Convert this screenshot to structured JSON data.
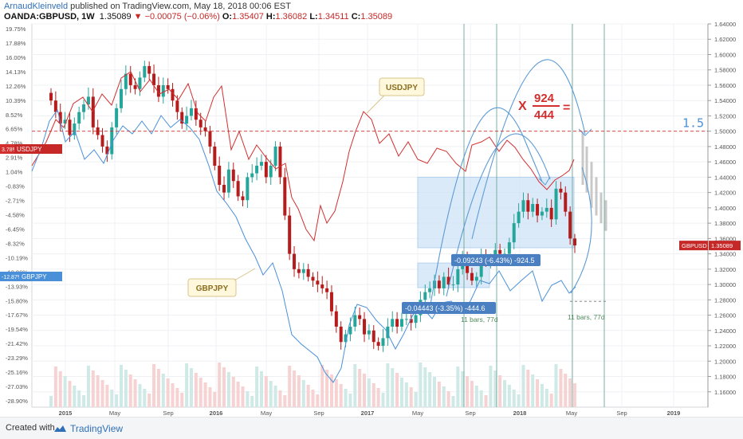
{
  "header": {
    "author": "ArnaudKleinveld",
    "published": " published on TradingView.com, May 18, 2018 00:06 EST",
    "symbol": "OANDA:GBPUSD, 1W",
    "price": "1.35089",
    "change": "−0.00075 (−0.06%)",
    "o_label": "O:",
    "o_value": "1.35407",
    "h_label": "H:",
    "h_value": "1.36082",
    "l_label": "L:",
    "l_value": "1.34511",
    "c_label": "C:",
    "c_value": "1.35089"
  },
  "footer": {
    "created_with": "Created with",
    "brand": "TradingView"
  },
  "colors": {
    "up": "#26a69a",
    "down": "#b71c1c",
    "usdjpy": "#d32f2f",
    "gbpjpy": "#4a90d9",
    "box": "#cfe3f7",
    "vline": "#5a9e8e",
    "target": "#d32f2f",
    "target_label": "#4a90d9"
  },
  "annotations": {
    "usdjpy_callout": "USDJPY",
    "gbpjpy_callout": "GBPJPY",
    "multiplier_x": "X",
    "numerator": "924",
    "denominator": "444",
    "equals": "=",
    "target_value": "1.5",
    "measure_large": "-0.09243 (-6.43%) -924.5",
    "measure_small": "-0.04443 (-3.35%) -444.6",
    "bars_left": "11 bars, 77d",
    "bars_right": "11 bars, 77d"
  },
  "chart_data": {
    "type": "line",
    "title": "OANDA:GBPUSD, 1W",
    "right_axis": {
      "ylim": [
        1.14,
        1.64
      ],
      "ticks": [
        1.16,
        1.18,
        1.2,
        1.22,
        1.24,
        1.26,
        1.28,
        1.3,
        1.32,
        1.34,
        1.36,
        1.38,
        1.4,
        1.42,
        1.44,
        1.46,
        1.48,
        1.5,
        1.52,
        1.54,
        1.56,
        1.58,
        1.6,
        1.62,
        1.64
      ],
      "tick_labels": [
        "1.16000",
        "1.18000",
        "1.20000",
        "1.22000",
        "1.24000",
        "1.26000",
        "1.28000",
        "1.30000",
        "1.32000",
        "1.34000",
        "1.36000",
        "1.38000",
        "1.40000",
        "1.42000",
        "1.44000",
        "1.46000",
        "1.48000",
        "1.50000",
        "1.52000",
        "1.54000",
        "1.56000",
        "1.58000",
        "1.60000",
        "1.62000",
        "1.64000"
      ]
    },
    "left_axis": {
      "unit": "%",
      "tick_labels": [
        "19.75%",
        "17.88%",
        "16.00%",
        "14.13%",
        "12.26%",
        "10.39%",
        "8.52%",
        "6.65%",
        "4.78%",
        "2.91%",
        "1.04%",
        "-0.83%",
        "-2.71%",
        "-4.58%",
        "-6.45%",
        "-8.32%",
        "-10.19%",
        "-12.06%",
        "-13.93%",
        "-15.80%",
        "-17.67%",
        "-19.54%",
        "-21.42%",
        "-23.29%",
        "-25.16%",
        "-27.03%",
        "-28.90%"
      ]
    },
    "x_tick_labels": [
      "2015",
      "May",
      "Sep",
      "2016",
      "May",
      "Sep",
      "2017",
      "May",
      "Sep",
      "2018",
      "May",
      "Sep",
      "2019"
    ],
    "grid": true,
    "series": [
      {
        "name": "GBPUSD",
        "kind": "candles",
        "last": 1.35089,
        "label": "GBPUSD",
        "value_label": "1.35089",
        "close_path": [
          1.54,
          1.525,
          1.51,
          1.515,
          1.495,
          1.51,
          1.525,
          1.535,
          1.545,
          1.505,
          1.495,
          1.48,
          1.47,
          1.505,
          1.53,
          1.555,
          1.575,
          1.56,
          1.555,
          1.57,
          1.585,
          1.575,
          1.56,
          1.545,
          1.56,
          1.555,
          1.54,
          1.525,
          1.51,
          1.52,
          1.53,
          1.515,
          1.505,
          1.5,
          1.48,
          1.455,
          1.43,
          1.42,
          1.45,
          1.435,
          1.415,
          1.41,
          1.44,
          1.445,
          1.455,
          1.46,
          1.44,
          1.455,
          1.48,
          1.44,
          1.39,
          1.34,
          1.32,
          1.315,
          1.32,
          1.31,
          1.305,
          1.3,
          1.295,
          1.29,
          1.265,
          1.245,
          1.225,
          1.235,
          1.245,
          1.26,
          1.255,
          1.235,
          1.24,
          1.225,
          1.22,
          1.23,
          1.245,
          1.255,
          1.245,
          1.255,
          1.255,
          1.25,
          1.26,
          1.28,
          1.29,
          1.295,
          1.305,
          1.295,
          1.31,
          1.3,
          1.3,
          1.32,
          1.335,
          1.315,
          1.305,
          1.31,
          1.335,
          1.33,
          1.33,
          1.345,
          1.34,
          1.34,
          1.355,
          1.38,
          1.395,
          1.41,
          1.395,
          1.405,
          1.39,
          1.395,
          1.4,
          1.385,
          1.425,
          1.42,
          1.395,
          1.36,
          1.351
        ]
      },
      {
        "name": "USDJPY",
        "kind": "line",
        "label": "USDJPY",
        "value_label": "3.78%"
      },
      {
        "name": "GBPJPY",
        "kind": "line",
        "label": "GBPJPY",
        "value_label": "-12.87%"
      }
    ],
    "reference_lines": [
      {
        "value": 1.5,
        "label": "1.5",
        "style": "dashed"
      }
    ]
  }
}
